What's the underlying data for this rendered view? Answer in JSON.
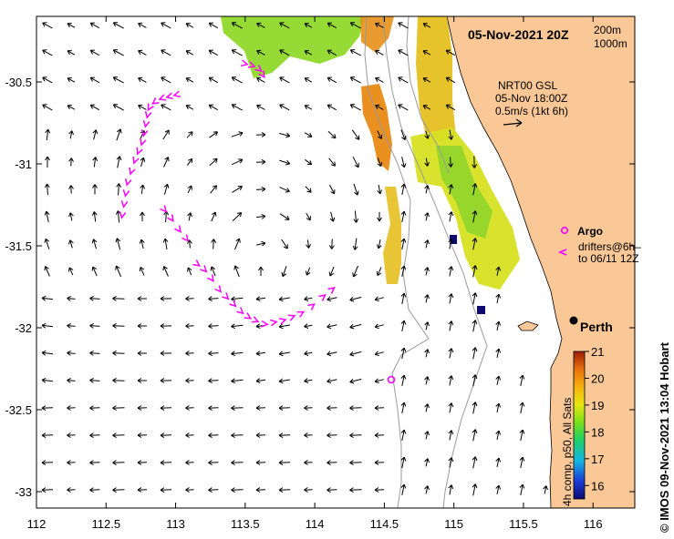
{
  "map": {
    "title": "05-Nov-2021 20Z",
    "depth_contours": [
      "200m",
      "1000m"
    ],
    "current_info": {
      "line1": "NRT00 GSL",
      "line2": "05-Nov 18:00Z",
      "line3": "0.5m/s (1kt 6h)"
    },
    "lon_ticks": [
      "112",
      "112.5",
      "113",
      "113.5",
      "114",
      "114.5",
      "115",
      "115.5",
      "116"
    ],
    "lat_ticks": [
      "-30.5",
      "-31",
      "-31.5",
      "-32",
      "-32.5",
      "-33"
    ],
    "lon_range": [
      112.0,
      116.3
    ],
    "lat_range": [
      -33.1,
      -30.1
    ],
    "place_label": "Perth",
    "legend": {
      "argo_label": "Argo",
      "drifters_label1": "drifters@6h–",
      "drifters_label2": "to 06/11 12Z"
    },
    "colorbar": {
      "ticks": [
        "21",
        "20",
        "19",
        "18",
        "17",
        "16"
      ],
      "label": "4h comp, p50, All Sats",
      "range": [
        15.5,
        21.0
      ]
    },
    "credit": "© IMOS 09-Nov-2021 13:04 Hobart",
    "colors": {
      "land": "#f9c896",
      "drifter": "#ff00ff",
      "argo": "#ff00ff",
      "contour": "#9a9a9a",
      "arrow": "#000000"
    }
  }
}
